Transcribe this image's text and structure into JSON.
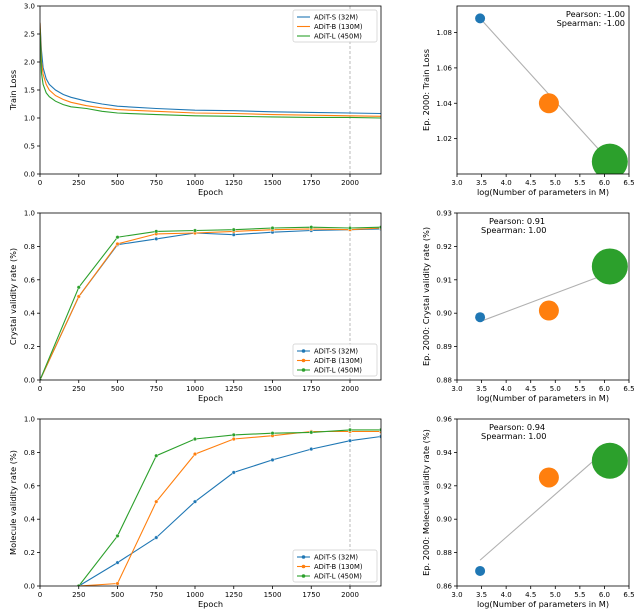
{
  "chart_data": [
    {
      "id": "train-loss-curve",
      "type": "line",
      "xlabel": "Epoch",
      "ylabel": "Train Loss",
      "xlim": [
        0,
        2200
      ],
      "ylim": [
        0,
        3.0
      ],
      "xticks": [
        0,
        250,
        500,
        750,
        1000,
        1250,
        1500,
        1750,
        2000
      ],
      "yticks": [
        0.0,
        0.5,
        1.0,
        1.5,
        2.0,
        2.5,
        3.0
      ],
      "tick_decimals": 1,
      "vline_x": 2000,
      "legend_position": "top-right",
      "markers": false,
      "series": [
        {
          "name": "ADiT-S (32M)",
          "color": "#1f77b4",
          "x": [
            0,
            10,
            20,
            40,
            60,
            100,
            150,
            200,
            300,
            400,
            500,
            750,
            1000,
            1250,
            1500,
            1750,
            2000,
            2200
          ],
          "y": [
            2.7,
            2.2,
            1.9,
            1.7,
            1.6,
            1.5,
            1.42,
            1.37,
            1.3,
            1.25,
            1.21,
            1.17,
            1.14,
            1.13,
            1.11,
            1.1,
            1.09,
            1.08
          ]
        },
        {
          "name": "ADiT-B (130M)",
          "color": "#ff7f0e",
          "x": [
            0,
            10,
            20,
            40,
            60,
            100,
            150,
            200,
            300,
            400,
            500,
            750,
            1000,
            1250,
            1500,
            1750,
            2000,
            2200
          ],
          "y": [
            2.7,
            2.0,
            1.78,
            1.6,
            1.5,
            1.4,
            1.33,
            1.28,
            1.22,
            1.18,
            1.15,
            1.12,
            1.09,
            1.08,
            1.06,
            1.05,
            1.04,
            1.03
          ]
        },
        {
          "name": "ADiT-L (450M)",
          "color": "#2ca02c",
          "x": [
            0,
            10,
            20,
            40,
            60,
            100,
            150,
            200,
            300,
            400,
            500,
            750,
            1000,
            1250,
            1500,
            1750,
            2000,
            2200
          ],
          "y": [
            2.6,
            1.8,
            1.6,
            1.45,
            1.38,
            1.3,
            1.24,
            1.2,
            1.17,
            1.12,
            1.09,
            1.06,
            1.04,
            1.03,
            1.02,
            1.01,
            1.01,
            1.0
          ]
        }
      ]
    },
    {
      "id": "train-loss-scatter",
      "type": "scatter",
      "xlabel": "log(Number of parameters in M)",
      "ylabel": "Ep. 2000: Train Loss",
      "xlim": [
        3.0,
        6.5
      ],
      "ylim": [
        1.0,
        1.095
      ],
      "xticks": [
        3.0,
        3.5,
        4.0,
        4.5,
        5.0,
        5.5,
        6.0,
        6.5
      ],
      "yticks": [
        1.02,
        1.04,
        1.06,
        1.08
      ],
      "tick_decimals": 2,
      "annotation_position": "top-right",
      "pearson": "Pearson: -1.00",
      "spearman": "Spearman: -1.00",
      "fit_line": [
        [
          3.47,
          1.088
        ],
        [
          6.11,
          1.007
        ]
      ],
      "points": [
        {
          "x": 3.47,
          "y": 1.088,
          "size": 1,
          "color": "#1f77b4"
        },
        {
          "x": 4.87,
          "y": 1.04,
          "size": 2,
          "color": "#ff7f0e"
        },
        {
          "x": 6.11,
          "y": 1.007,
          "size": 3,
          "color": "#2ca02c"
        }
      ]
    },
    {
      "id": "crystal-curve",
      "type": "line",
      "xlabel": "Epoch",
      "ylabel": "Crystal validity rate (%)",
      "xlim": [
        0,
        2200
      ],
      "ylim": [
        0,
        1.0
      ],
      "xticks": [
        0,
        250,
        500,
        750,
        1000,
        1250,
        1500,
        1750,
        2000
      ],
      "yticks": [
        0.0,
        0.2,
        0.4,
        0.6,
        0.8,
        1.0
      ],
      "tick_decimals": 1,
      "vline_x": 2000,
      "legend_position": "bottom-right",
      "markers": true,
      "series": [
        {
          "name": "ADiT-S (32M)",
          "color": "#1f77b4",
          "x": [
            0,
            250,
            500,
            750,
            1000,
            1250,
            1500,
            1750,
            2000,
            2200
          ],
          "y": [
            0.0,
            0.5,
            0.81,
            0.845,
            0.88,
            0.87,
            0.885,
            0.895,
            0.9,
            0.905
          ]
        },
        {
          "name": "ADiT-B (130M)",
          "color": "#ff7f0e",
          "x": [
            0,
            250,
            500,
            750,
            1000,
            1250,
            1500,
            1750,
            2000,
            2200
          ],
          "y": [
            0.0,
            0.5,
            0.815,
            0.875,
            0.88,
            0.89,
            0.9,
            0.905,
            0.9,
            0.91
          ]
        },
        {
          "name": "ADiT-L (450M)",
          "color": "#2ca02c",
          "x": [
            0,
            250,
            500,
            750,
            1000,
            1250,
            1500,
            1750,
            2000,
            2200
          ],
          "y": [
            0.0,
            0.555,
            0.855,
            0.89,
            0.895,
            0.9,
            0.91,
            0.915,
            0.91,
            0.915
          ]
        }
      ]
    },
    {
      "id": "crystal-scatter",
      "type": "scatter",
      "xlabel": "log(Number of parameters in M)",
      "ylabel": "Ep. 2000: Crystal validity rate (%)",
      "xlim": [
        3.0,
        6.5
      ],
      "ylim": [
        0.88,
        0.93
      ],
      "xticks": [
        3.0,
        3.5,
        4.0,
        4.5,
        5.0,
        5.5,
        6.0,
        6.5
      ],
      "yticks": [
        0.88,
        0.89,
        0.9,
        0.91,
        0.92,
        0.93
      ],
      "tick_decimals": 2,
      "annotation_position": "top-left",
      "pearson": "Pearson: 0.91",
      "spearman": "Spearman: 1.00",
      "fit_line": [
        [
          3.47,
          0.8975
        ],
        [
          6.11,
          0.9121
        ]
      ],
      "points": [
        {
          "x": 3.47,
          "y": 0.8988,
          "size": 1,
          "color": "#1f77b4"
        },
        {
          "x": 4.87,
          "y": 0.9008,
          "size": 2,
          "color": "#ff7f0e"
        },
        {
          "x": 6.11,
          "y": 0.914,
          "size": 3,
          "color": "#2ca02c"
        }
      ]
    },
    {
      "id": "molecule-curve",
      "type": "line",
      "xlabel": "Epoch",
      "ylabel": "Molecule validity rate (%)",
      "xlim": [
        0,
        2200
      ],
      "ylim": [
        0,
        1.0
      ],
      "xticks": [
        0,
        250,
        500,
        750,
        1000,
        1250,
        1500,
        1750,
        2000
      ],
      "yticks": [
        0.0,
        0.2,
        0.4,
        0.6,
        0.8,
        1.0
      ],
      "tick_decimals": 1,
      "vline_x": 2000,
      "legend_position": "bottom-right",
      "markers": true,
      "series": [
        {
          "name": "ADiT-S (32M)",
          "color": "#1f77b4",
          "x": [
            250,
            500,
            750,
            1000,
            1250,
            1500,
            1750,
            2000,
            2200
          ],
          "y": [
            0.0,
            0.14,
            0.29,
            0.505,
            0.68,
            0.755,
            0.82,
            0.87,
            0.895
          ]
        },
        {
          "name": "ADiT-B (130M)",
          "color": "#ff7f0e",
          "x": [
            250,
            500,
            750,
            1000,
            1250,
            1500,
            1750,
            2000,
            2200
          ],
          "y": [
            0.0,
            0.015,
            0.505,
            0.79,
            0.88,
            0.9,
            0.925,
            0.925,
            0.925
          ]
        },
        {
          "name": "ADiT-L (450M)",
          "color": "#2ca02c",
          "x": [
            250,
            500,
            750,
            1000,
            1250,
            1500,
            1750,
            2000,
            2200
          ],
          "y": [
            0.0,
            0.3,
            0.78,
            0.88,
            0.905,
            0.915,
            0.92,
            0.935,
            0.935
          ]
        }
      ]
    },
    {
      "id": "molecule-scatter",
      "type": "scatter",
      "xlabel": "log(Number of parameters in M)",
      "ylabel": "Ep. 2000: Molecule validity rate (%)",
      "xlim": [
        3.0,
        6.5
      ],
      "ylim": [
        0.86,
        0.96
      ],
      "xticks": [
        3.0,
        3.5,
        4.0,
        4.5,
        5.0,
        5.5,
        6.0,
        6.5
      ],
      "yticks": [
        0.86,
        0.88,
        0.9,
        0.92,
        0.94,
        0.96
      ],
      "tick_decimals": 2,
      "annotation_position": "top-left",
      "pearson": "Pearson: 0.94",
      "spearman": "Spearman: 1.00",
      "fit_line": [
        [
          3.47,
          0.8755
        ],
        [
          6.11,
          0.9435
        ]
      ],
      "points": [
        {
          "x": 3.47,
          "y": 0.869,
          "size": 1,
          "color": "#1f77b4"
        },
        {
          "x": 4.87,
          "y": 0.925,
          "size": 2,
          "color": "#ff7f0e"
        },
        {
          "x": 6.11,
          "y": 0.935,
          "size": 3,
          "color": "#2ca02c"
        }
      ]
    }
  ]
}
